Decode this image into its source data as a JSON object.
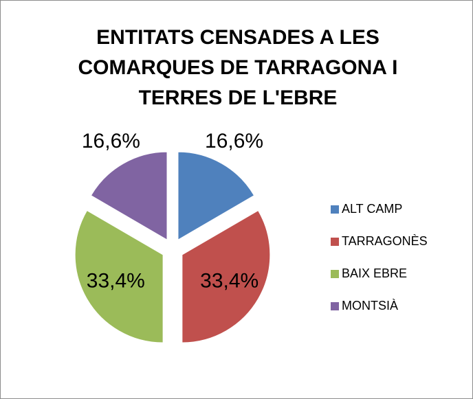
{
  "chart_data": {
    "type": "pie",
    "title": "ENTITATS CENSADES A LES COMARQUES DE TARRAGONA I TERRES DE L'EBRE",
    "categories": [
      "ALT CAMP",
      "TARRAGONÈS",
      "BAIX EBRE",
      "MONTSIÀ"
    ],
    "values": [
      16.6,
      33.4,
      33.4,
      16.6
    ],
    "value_labels": [
      "16,6%",
      "33,4%",
      "33,4%",
      "16,6%"
    ],
    "colors": [
      "#4f81bd",
      "#c0504d",
      "#9bbb59",
      "#8064a2"
    ],
    "legend": "right"
  }
}
